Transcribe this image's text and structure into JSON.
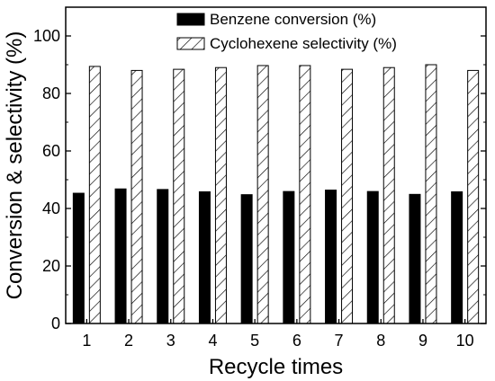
{
  "chart_data": {
    "type": "bar",
    "title": "",
    "xlabel": "Recycle times",
    "ylabel": "Conversion & selectivity (%)",
    "ylim": [
      0,
      110
    ],
    "yticks": [
      0,
      20,
      40,
      60,
      80,
      100
    ],
    "categories": [
      "1",
      "2",
      "3",
      "4",
      "5",
      "6",
      "7",
      "8",
      "9",
      "10"
    ],
    "series": [
      {
        "name": "Benzene conversion (%)",
        "pattern": "solid",
        "color": "#000000",
        "values": [
          45.3,
          46.8,
          46.6,
          45.8,
          44.8,
          45.9,
          46.4,
          45.9,
          44.9,
          45.8
        ]
      },
      {
        "name": "Cyclohexene selectivity (%)",
        "pattern": "hatched",
        "color": "#ffffff",
        "values": [
          89.4,
          88.0,
          88.4,
          89.0,
          89.7,
          89.7,
          88.4,
          89.0,
          90.0,
          88.0
        ]
      }
    ],
    "legend_position": "top-right",
    "grid": false
  }
}
